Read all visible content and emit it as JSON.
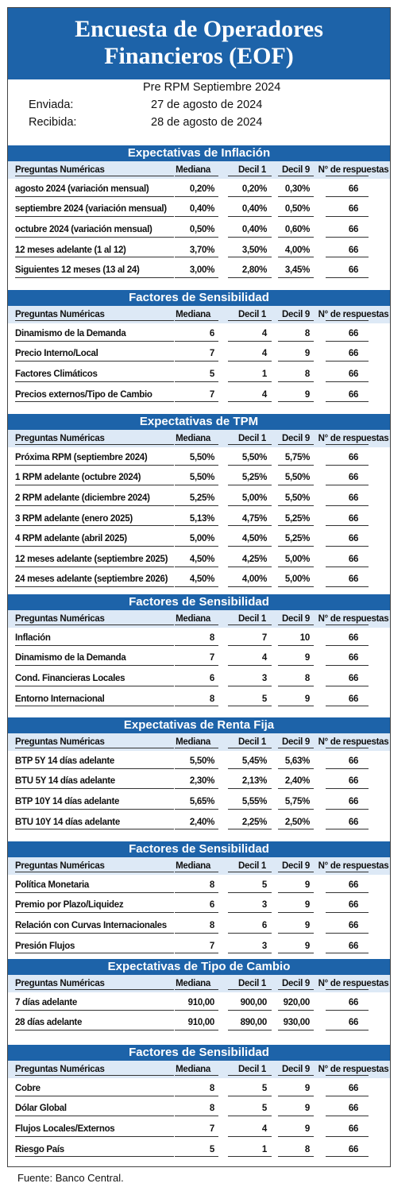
{
  "title": {
    "line1": "Encuesta de Operadores",
    "line2": "Financieros (EOF)"
  },
  "subtitle": "Pre RPM Septiembre 2024",
  "sent": {
    "label": "Enviada:",
    "value": "27 de agosto de 2024"
  },
  "received": {
    "label": "Recibida:",
    "value": "28 de agosto de 2024"
  },
  "columns_a": [
    "Preguntas Numéricas",
    "Mediana",
    "Decil 1",
    "Decil 9",
    "N° de respuestas"
  ],
  "sections": [
    {
      "title": "Expectativas de Inflación",
      "rows": [
        [
          "agosto 2024 (variación mensual)",
          "0,20%",
          "0,20%",
          "0,30%",
          "66"
        ],
        [
          "septiembre 2024 (variación mensual)",
          "0,40%",
          "0,40%",
          "0,50%",
          "66"
        ],
        [
          "octubre 2024 (variación mensual)",
          "0,50%",
          "0,40%",
          "0,60%",
          "66"
        ],
        [
          "12 meses adelante (1 al 12)",
          "3,70%",
          "3,50%",
          "4,00%",
          "66"
        ],
        [
          "Siguientes 12 meses (13 al 24)",
          "3,00%",
          "2,80%",
          "3,45%",
          "66"
        ]
      ]
    },
    {
      "title": "Factores de Sensibilidad",
      "rows": [
        [
          "Dinamismo de la Demanda",
          "6",
          "4",
          "8",
          "66"
        ],
        [
          "Precio Interno/Local",
          "7",
          "4",
          "9",
          "66"
        ],
        [
          "Factores Climáticos",
          "5",
          "1",
          "8",
          "66"
        ],
        [
          "Precios externos/Tipo de Cambio",
          "7",
          "4",
          "9",
          "66"
        ]
      ]
    },
    {
      "title": "Expectativas de TPM",
      "rows": [
        [
          "Próxima RPM (septiembre 2024)",
          "5,50%",
          "5,50%",
          "5,75%",
          "66"
        ],
        [
          "1 RPM adelante (octubre 2024)",
          "5,50%",
          "5,25%",
          "5,50%",
          "66"
        ],
        [
          "2 RPM adelante (diciembre 2024)",
          "5,25%",
          "5,00%",
          "5,50%",
          "66"
        ],
        [
          "3 RPM adelante (enero 2025)",
          "5,13%",
          "4,75%",
          "5,25%",
          "66"
        ],
        [
          "4 RPM adelante (abril 2025)",
          "5,00%",
          "4,50%",
          "5,25%",
          "66"
        ],
        [
          "12 meses adelante (septiembre 2025)",
          "4,50%",
          "4,25%",
          "5,00%",
          "66"
        ],
        [
          "24 meses adelante (septiembre 2026)",
          "4,50%",
          "4,00%",
          "5,00%",
          "66"
        ]
      ]
    },
    {
      "title": "Factores de Sensibilidad",
      "rows": [
        [
          "Inflación",
          "8",
          "7",
          "10",
          "66"
        ],
        [
          "Dinamismo de la Demanda",
          "7",
          "4",
          "9",
          "66"
        ],
        [
          "Cond. Financieras Locales",
          "6",
          "3",
          "8",
          "66"
        ],
        [
          "Entorno Internacional",
          "8",
          "5",
          "9",
          "66"
        ]
      ]
    },
    {
      "title": "Expectativas de Renta Fija",
      "rows": [
        [
          "BTP 5Y 14 días adelante",
          "5,50%",
          "5,45%",
          "5,63%",
          "66"
        ],
        [
          "BTU 5Y 14 días adelante",
          "2,30%",
          "2,13%",
          "2,40%",
          "66"
        ],
        [
          "BTP 10Y 14 días adelante",
          "5,65%",
          "5,55%",
          "5,75%",
          "66"
        ],
        [
          "BTU 10Y 14 días adelante",
          "2,40%",
          "2,25%",
          "2,50%",
          "66"
        ]
      ]
    },
    {
      "title": "Factores de Sensibilidad",
      "rows": [
        [
          "Política Monetaria",
          "8",
          "5",
          "9",
          "66"
        ],
        [
          "Premio por Plazo/Liquidez",
          "6",
          "3",
          "9",
          "66"
        ],
        [
          "Relación con Curvas Internacionales",
          "8",
          "6",
          "9",
          "66"
        ],
        [
          "Presión Flujos",
          "7",
          "3",
          "9",
          "66"
        ]
      ]
    },
    {
      "title": "Expectativas de Tipo de Cambio",
      "rows": [
        [
          "7 días adelante",
          "910,00",
          "900,00",
          "920,00",
          "66"
        ],
        [
          "28 días adelante",
          "910,00",
          "890,00",
          "930,00",
          "66"
        ]
      ]
    },
    {
      "title": "Factores de Sensibilidad",
      "rows": [
        [
          "Cobre",
          "8",
          "5",
          "9",
          "66"
        ],
        [
          "Dólar Global",
          "8",
          "5",
          "9",
          "66"
        ],
        [
          "Flujos Locales/Externos",
          "7",
          "4",
          "9",
          "66"
        ],
        [
          "Riesgo País",
          "5",
          "1",
          "8",
          "66"
        ]
      ]
    }
  ],
  "source": "Fuente: Banco Central.",
  "colors": {
    "header_blue": "#1d63a9",
    "header_row_bg": "#dde9f6"
  }
}
